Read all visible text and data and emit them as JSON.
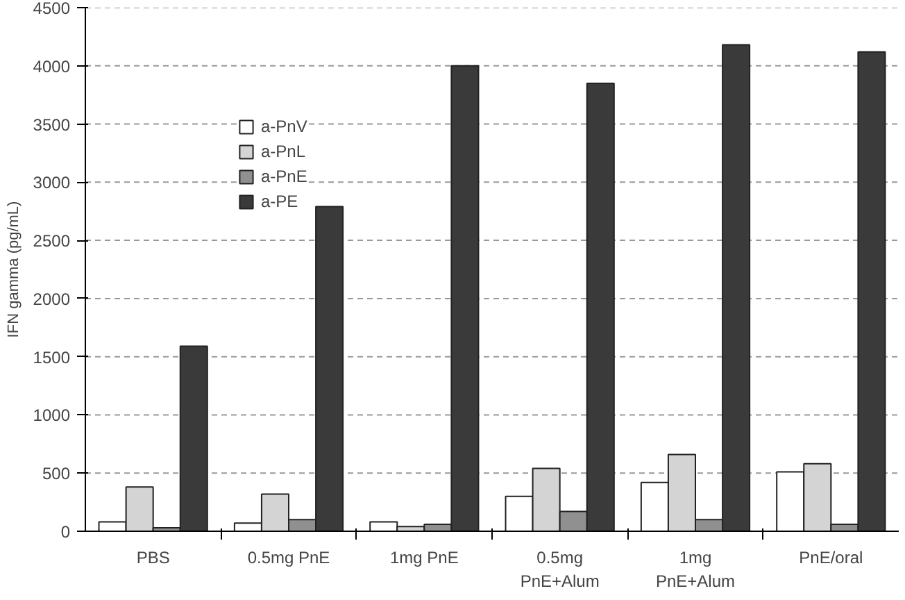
{
  "chart_data": {
    "type": "bar",
    "ylabel": "IFN gamma (pg/mL)",
    "categories": [
      "PBS",
      "0.5mg PnE",
      "1mg PnE",
      "0.5mg\nPnE+Alum",
      "1mg\nPnE+Alum",
      "PnE/oral"
    ],
    "series": [
      {
        "name": "a-PnV",
        "color": "#ffffff",
        "values": [
          80,
          70,
          80,
          300,
          420,
          510
        ]
      },
      {
        "name": "a-PnL",
        "color": "#d4d4d4",
        "values": [
          380,
          320,
          40,
          540,
          660,
          580
        ]
      },
      {
        "name": "a-PnE",
        "color": "#909090",
        "values": [
          30,
          100,
          60,
          170,
          100,
          60
        ]
      },
      {
        "name": "a-PE",
        "color": "#3a3a3a",
        "values": [
          1590,
          2790,
          4000,
          3850,
          4180,
          4120
        ]
      }
    ],
    "ylim": [
      0,
      4500
    ],
    "yticks": [
      0,
      500,
      1000,
      1500,
      2000,
      2500,
      3000,
      3500,
      4000,
      4500
    ],
    "grid": "y",
    "legend": "top left"
  }
}
